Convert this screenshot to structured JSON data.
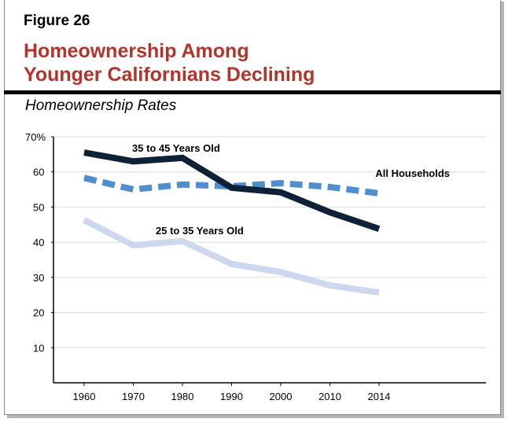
{
  "figure_label": "Figure 26",
  "title_line1": "Homeownership Among",
  "title_line2": "Younger Californians Declining",
  "chart_data": {
    "type": "line",
    "title": "Homeownership Rates",
    "categories": [
      "1960",
      "1970",
      "1980",
      "1990",
      "2000",
      "2010",
      "2014"
    ],
    "ylim": [
      0,
      70
    ],
    "yticks": [
      10,
      20,
      30,
      40,
      50,
      60,
      70
    ],
    "ytick_labels": [
      "10",
      "20",
      "30",
      "40",
      "50",
      "60",
      "70%"
    ],
    "grid": true,
    "series": [
      {
        "name": "35 to 45 Years Old",
        "color": "#0f2137",
        "dashed": false,
        "values": [
          65.5,
          63,
          64,
          55.5,
          54.2,
          48.5,
          43.8
        ]
      },
      {
        "name": "All Households",
        "color": "#4f8fcf",
        "dashed": true,
        "values": [
          58.3,
          55,
          56.4,
          55.9,
          56.8,
          55.7,
          53.9
        ]
      },
      {
        "name": "25 to 35 Years Old",
        "color": "#cdd8ef",
        "dashed": false,
        "values": [
          46.3,
          39.1,
          40.3,
          33.8,
          31.5,
          27.7,
          25.7
        ]
      }
    ]
  }
}
